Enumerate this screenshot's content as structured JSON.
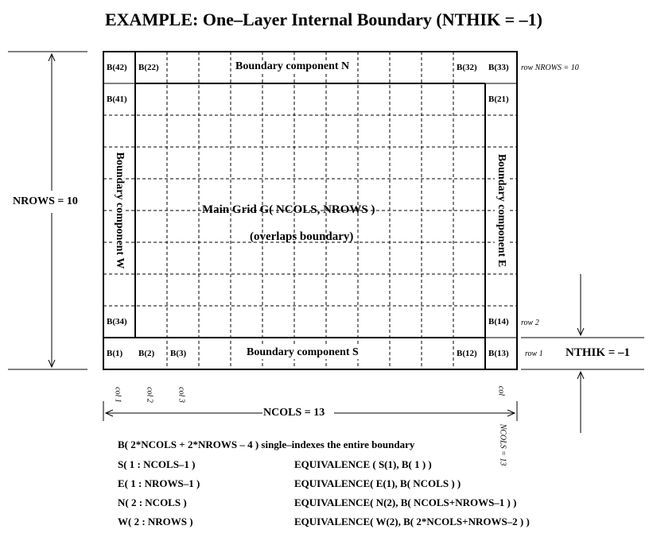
{
  "title": "EXAMPLE:  One–Layer Internal Boundary (NTHIK = –1)",
  "grid": {
    "ncols": 13,
    "nrows": 10
  },
  "cells": {
    "b42": "B(42)",
    "b22": "B(22)",
    "b32": "B(32)",
    "b33": "B(33)",
    "b41": "B(41)",
    "b21": "B(21)",
    "b34": "B(34)",
    "b14": "B(14)",
    "b1": "B(1)",
    "b2": "B(2)",
    "b3": "B(3)",
    "b12": "B(12)",
    "b13": "B(13)"
  },
  "components": {
    "n": "Boundary component  N",
    "s": "Boundary component  S",
    "w": "Boundary component  W",
    "e": "Boundary component  E"
  },
  "main_grid": {
    "line1": "Main Grid  G( NCOLS, NROWS )",
    "line2": "(overlaps boundary)"
  },
  "row_labels": {
    "top": "row  NROWS = 10",
    "r2": "row  2",
    "r1": "row  1"
  },
  "col_labels": {
    "c1": "col  1",
    "c2": "col  2",
    "c3": "col  3",
    "cl": "col",
    "ncols13": "NCOLS = 13"
  },
  "dims": {
    "nrows": "NROWS = 10",
    "ncols": "NCOLS = 13",
    "nthik": "NTHIK = –1"
  },
  "notes": {
    "boundary": "B( 2*NCOLS + 2*NROWS – 4 ) single–indexes the entire boundary",
    "s": "S( 1 : NCOLS–1 )",
    "e": "E( 1 : NROWS–1 )",
    "n": "N( 2 : NCOLS )",
    "w": "W( 2 : NROWS )",
    "eq_s": "EQUIVALENCE  ( S(1), B( 1 ) )",
    "eq_e": "EQUIVALENCE( E(1), B( NCOLS ) )",
    "eq_n": "EQUIVALENCE( N(2), B( NCOLS+NROWS–1 ) )",
    "eq_w": "EQUIVALENCE( W(2), B( 2*NCOLS+NROWS–2 ) )"
  }
}
